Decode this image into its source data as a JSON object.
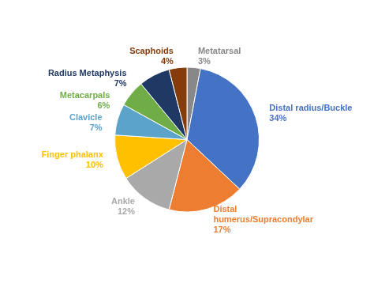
{
  "chart_data": {
    "type": "pie",
    "categories": [
      "Metatarsal",
      "Distal radius/Buckle",
      "Distal\nhumerus/Supracondylar",
      "Ankle",
      "Finger phalanx",
      "Clavicle",
      "Metacarpals",
      "Radius Metaphysis",
      "Scaphoids"
    ],
    "values": [
      3,
      34,
      17,
      12,
      10,
      7,
      6,
      7,
      4
    ],
    "value_labels": [
      "3%",
      "34%",
      "17%",
      "12%",
      "10%",
      "7%",
      "6%",
      "7%",
      "4%"
    ],
    "colors": [
      "#888888",
      "#4472C4",
      "#ED7D31",
      "#A9A9A9",
      "#FFC000",
      "#5BA3C9",
      "#70AD47",
      "#1F3864",
      "#843C0C"
    ],
    "data_labels": true
  }
}
